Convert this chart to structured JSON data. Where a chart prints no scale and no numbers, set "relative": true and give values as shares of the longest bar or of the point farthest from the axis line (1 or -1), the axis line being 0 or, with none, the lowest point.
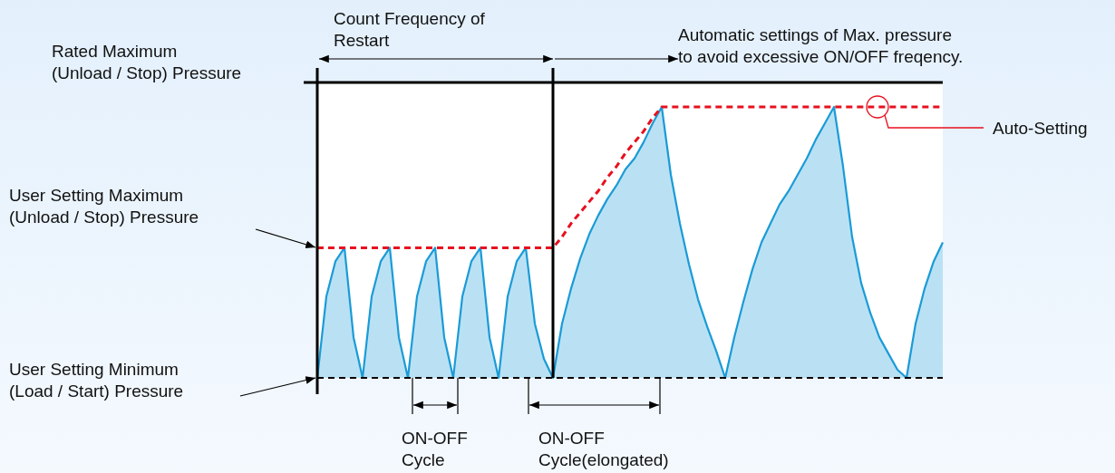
{
  "chart_data": {
    "type": "area",
    "relative": true,
    "categories": [
      null,
      null,
      null,
      null,
      null,
      null,
      null,
      null,
      null,
      null,
      null,
      null,
      null,
      null,
      null,
      null,
      null,
      null,
      null,
      null,
      null,
      null,
      null,
      null,
      null,
      null,
      null,
      null,
      null,
      null,
      null,
      null,
      null,
      null,
      null,
      null,
      null,
      null,
      null,
      null,
      null,
      null,
      null,
      null,
      null,
      null,
      null,
      null,
      null,
      null,
      null,
      null,
      null,
      null,
      null,
      null,
      null,
      null,
      null,
      null,
      null,
      null,
      null,
      null,
      null,
      null,
      null,
      null,
      null,
      null
    ],
    "series": [
      {
        "type": "area",
        "color": "#1a9bd7",
        "values": [
          0,
          0.3,
          0.43,
          0.48,
          0.15,
          0,
          0.3,
          0.43,
          0.48,
          0.15,
          0,
          0.3,
          0.43,
          0.48,
          0.15,
          0,
          0.3,
          0.43,
          0.48,
          0.15,
          0,
          0.3,
          0.43,
          0.48,
          0.2,
          0.07,
          0,
          0.2,
          0.33,
          0.44,
          0.53,
          0.6,
          0.66,
          0.71,
          0.77,
          0.81,
          0.87,
          0.94,
          1,
          0.75,
          0.57,
          0.42,
          0.29,
          0.19,
          0.1,
          0,
          0.15,
          0.28,
          0.4,
          0.5,
          0.57,
          0.64,
          0.69,
          0.75,
          0.81,
          0.88,
          0.94,
          1,
          0.78,
          0.52,
          0.35,
          0.24,
          0.15,
          0.09,
          0.03,
          0,
          0.2,
          0.33,
          0.43,
          0.5
        ]
      },
      {
        "type": "line",
        "color": "#e8101e",
        "line_style": "dashed",
        "values": [
          0.48,
          0.48,
          0.48,
          0.48,
          0.48,
          0.48,
          0.48,
          0.48,
          0.48,
          0.48,
          0.48,
          0.48,
          0.48,
          0.48,
          0.48,
          0.48,
          0.48,
          0.48,
          0.48,
          0.48,
          0.48,
          0.48,
          0.48,
          0.48,
          0.48,
          0.48,
          0.48,
          0.52,
          0.57,
          0.61,
          0.65,
          0.69,
          0.74,
          0.78,
          0.83,
          0.87,
          0.91,
          0.96,
          1,
          1,
          1,
          1,
          1,
          1,
          1,
          1,
          1,
          1,
          1,
          1,
          1,
          1,
          1,
          1,
          1,
          1,
          1,
          1,
          1,
          1,
          1,
          1,
          1,
          1,
          1,
          1,
          1,
          1,
          1,
          1
        ]
      }
    ],
    "ref_lines": [
      {
        "axis": "y",
        "value": 1.09,
        "label": "Rated Maximum\n(Unload / Stop) Pressure",
        "color": "#000000",
        "line_style": "solid"
      },
      {
        "axis": "y",
        "value": 0,
        "label": null,
        "color": "#000000",
        "line_style": "dashed"
      }
    ],
    "annotations": [
      "Count Frequency of\nRestart",
      "Automatic settings of Max. pressure\nto avoid excessive ON/OFF freqency.",
      "ON-OFF\nCycle",
      "ON-OFF\nCycle(elongated)",
      "User Setting Maximum\n(Unload / Stop) Pressure",
      "User Setting Minimum\n(Load / Start) Pressure",
      "Auto-Setting"
    ]
  }
}
